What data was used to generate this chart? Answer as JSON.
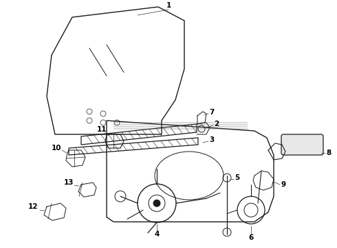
{
  "bg_color": "#ffffff",
  "line_color": "#1a1a1a",
  "label_color": "#000000",
  "figw": 4.9,
  "figh": 3.6,
  "dpi": 100
}
